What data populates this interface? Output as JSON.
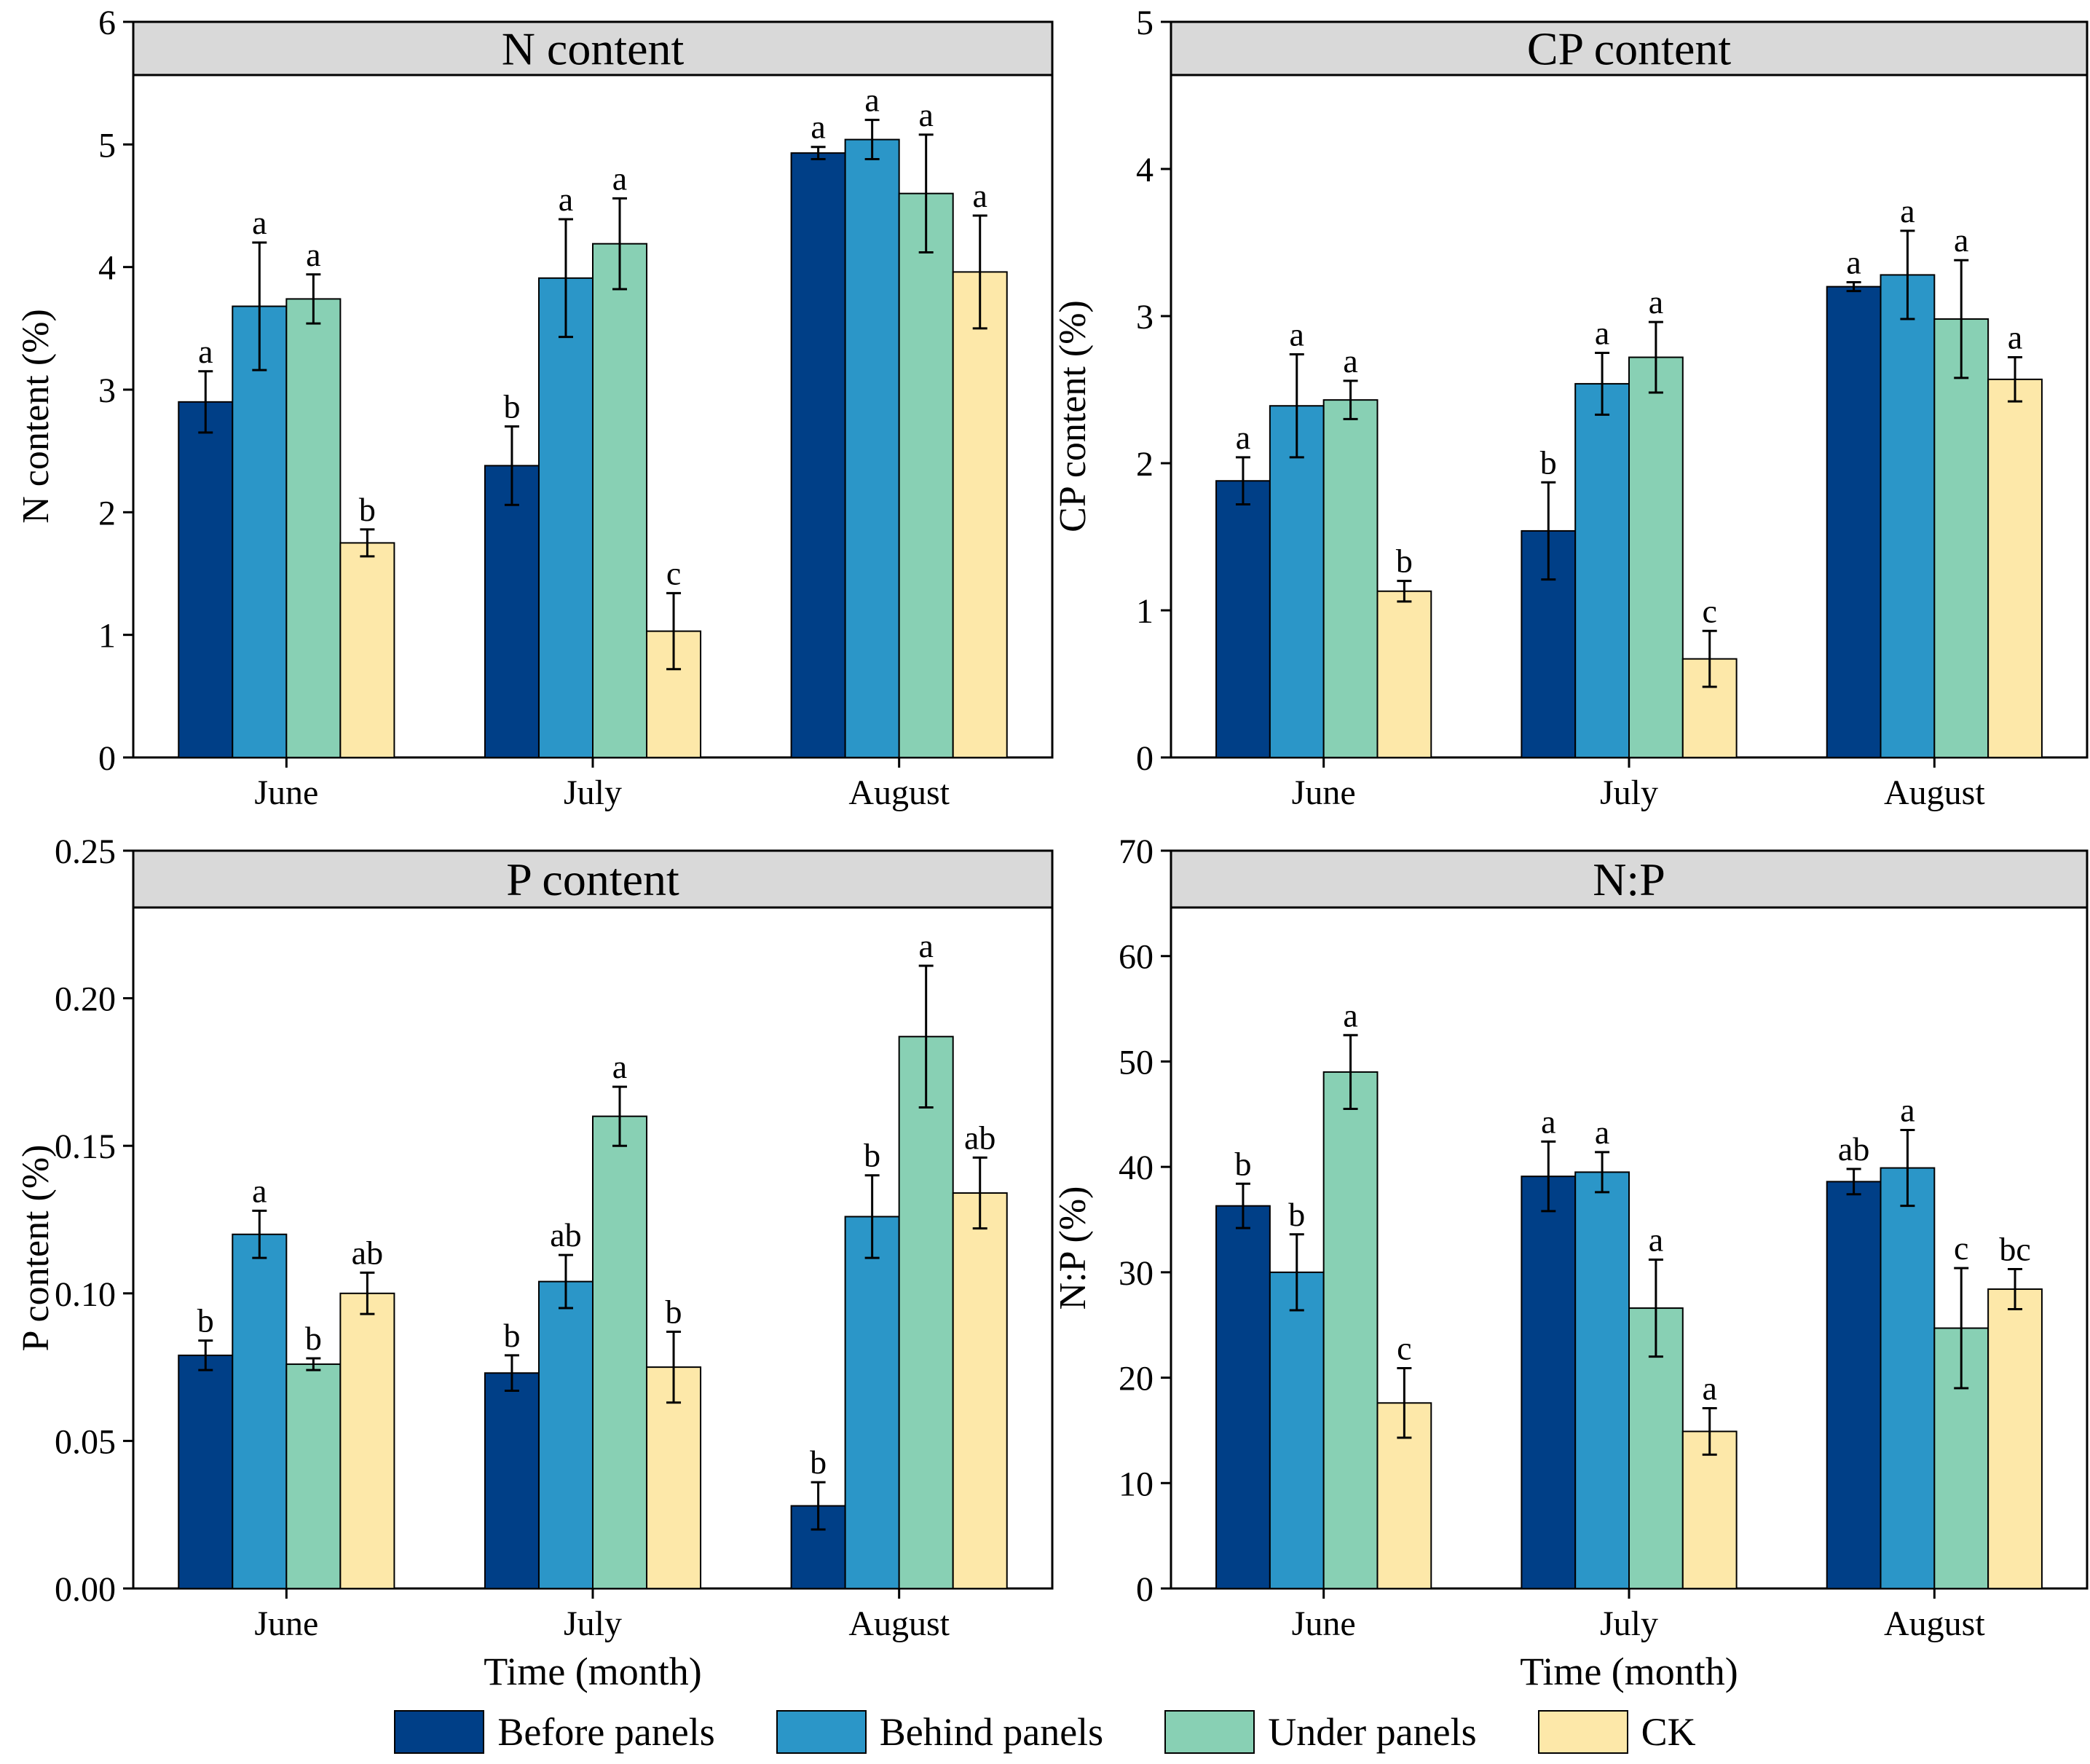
{
  "legend": [
    {
      "label": "Before panels",
      "color": "#003f87"
    },
    {
      "label": "Behind panels",
      "color": "#2b96c8"
    },
    {
      "label": "Under panels",
      "color": "#88d0b4"
    },
    {
      "label": "CK",
      "color": "#fde8a9"
    }
  ],
  "chart_data": [
    {
      "type": "bar",
      "title": "N content",
      "ylabel": "N content (%)",
      "xlabel": "",
      "ylim": [
        0,
        6
      ],
      "yticks": [
        "0",
        "1",
        "2",
        "3",
        "4",
        "5",
        "6"
      ],
      "categories": [
        "June",
        "July",
        "August"
      ],
      "series": [
        {
          "name": "Before panels",
          "values": [
            2.9,
            2.38,
            4.93
          ],
          "errors": [
            0.25,
            0.32,
            0.05
          ],
          "letters": [
            "a",
            "b",
            "a"
          ]
        },
        {
          "name": "Behind panels",
          "values": [
            3.68,
            3.91,
            5.04
          ],
          "errors": [
            0.52,
            0.48,
            0.16
          ],
          "letters": [
            "a",
            "a",
            "a"
          ]
        },
        {
          "name": "Under panels",
          "values": [
            3.74,
            4.19,
            4.6
          ],
          "errors": [
            0.2,
            0.37,
            0.48
          ],
          "letters": [
            "a",
            "a",
            "a"
          ]
        },
        {
          "name": "CK",
          "values": [
            1.75,
            1.03,
            3.96
          ],
          "errors": [
            0.11,
            0.31,
            0.46
          ],
          "letters": [
            "b",
            "c",
            "a"
          ]
        }
      ]
    },
    {
      "type": "bar",
      "title": "CP content",
      "ylabel": "CP content (%)",
      "xlabel": "",
      "ylim": [
        0,
        5
      ],
      "yticks": [
        "0",
        "1",
        "2",
        "3",
        "4",
        "5"
      ],
      "categories": [
        "June",
        "July",
        "August"
      ],
      "series": [
        {
          "name": "Before panels",
          "values": [
            1.88,
            1.54,
            3.2
          ],
          "errors": [
            0.16,
            0.33,
            0.03
          ],
          "letters": [
            "a",
            "b",
            "a"
          ]
        },
        {
          "name": "Behind panels",
          "values": [
            2.39,
            2.54,
            3.28
          ],
          "errors": [
            0.35,
            0.21,
            0.3
          ],
          "letters": [
            "a",
            "a",
            "a"
          ]
        },
        {
          "name": "Under panels",
          "values": [
            2.43,
            2.72,
            2.98
          ],
          "errors": [
            0.13,
            0.24,
            0.4
          ],
          "letters": [
            "a",
            "a",
            "a"
          ]
        },
        {
          "name": "CK",
          "values": [
            1.13,
            0.67,
            2.57
          ],
          "errors": [
            0.07,
            0.19,
            0.15
          ],
          "letters": [
            "b",
            "c",
            "a"
          ]
        }
      ]
    },
    {
      "type": "bar",
      "title": "P content",
      "ylabel": "P content (%)",
      "xlabel": "Time (month)",
      "ylim": [
        0,
        0.25
      ],
      "yticks": [
        "0.00",
        "0.05",
        "0.10",
        "0.15",
        "0.20",
        "0.25"
      ],
      "categories": [
        "June",
        "July",
        "August"
      ],
      "series": [
        {
          "name": "Before panels",
          "values": [
            0.079,
            0.073,
            0.028
          ],
          "errors": [
            0.005,
            0.006,
            0.008
          ],
          "letters": [
            "b",
            "b",
            "b"
          ]
        },
        {
          "name": "Behind panels",
          "values": [
            0.12,
            0.104,
            0.126
          ],
          "errors": [
            0.008,
            0.009,
            0.014
          ],
          "letters": [
            "a",
            "ab",
            "b"
          ]
        },
        {
          "name": "Under panels",
          "values": [
            0.076,
            0.16,
            0.187
          ],
          "errors": [
            0.002,
            0.01,
            0.024
          ],
          "letters": [
            "b",
            "a",
            "a"
          ]
        },
        {
          "name": "CK",
          "values": [
            0.1,
            0.075,
            0.134
          ],
          "errors": [
            0.007,
            0.012,
            0.012
          ],
          "letters": [
            "ab",
            "b",
            "ab"
          ]
        }
      ]
    },
    {
      "type": "bar",
      "title": "N:P",
      "ylabel": "N:P (%)",
      "xlabel": "Time (month)",
      "ylim": [
        0,
        70
      ],
      "yticks": [
        "0",
        "10",
        "20",
        "30",
        "40",
        "50",
        "60",
        "70"
      ],
      "categories": [
        "June",
        "July",
        "August"
      ],
      "series": [
        {
          "name": "Before panels",
          "values": [
            36.3,
            39.1,
            38.6
          ],
          "errors": [
            2.1,
            3.3,
            1.2
          ],
          "letters": [
            "b",
            "a",
            "ab"
          ]
        },
        {
          "name": "Behind panels",
          "values": [
            30.0,
            39.5,
            39.9
          ],
          "errors": [
            3.6,
            1.9,
            3.6
          ],
          "letters": [
            "b",
            "a",
            "a"
          ]
        },
        {
          "name": "Under panels",
          "values": [
            49.0,
            26.6,
            24.7
          ],
          "errors": [
            3.5,
            4.6,
            5.7
          ],
          "letters": [
            "a",
            "a",
            "c"
          ]
        },
        {
          "name": "CK",
          "values": [
            17.6,
            14.9,
            28.4
          ],
          "errors": [
            3.3,
            2.2,
            1.9
          ],
          "letters": [
            "c",
            "a",
            "bc"
          ]
        }
      ]
    }
  ]
}
